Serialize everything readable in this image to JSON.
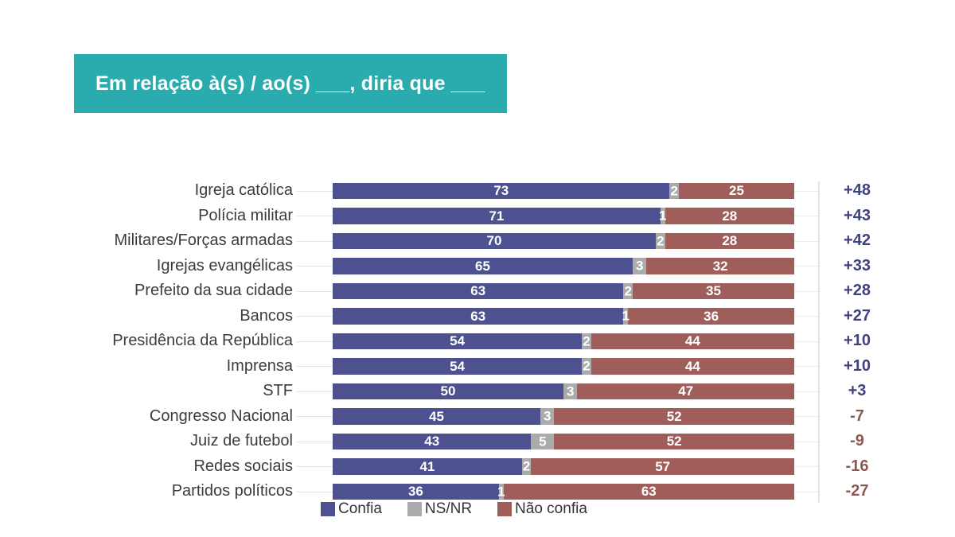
{
  "header": {
    "title": "Em relação à(s) / ao(s) ___, diria que ___"
  },
  "colors": {
    "header_bg": "#2AACAE",
    "header_text": "#FFFFFF",
    "confia": "#4D5190",
    "nsnr": "#ABABAB",
    "nao_confia": "#A05E5B",
    "net_positive": "#3F437B",
    "net_negative": "#8A5A52",
    "label_text": "#3C3C3C",
    "gridline": "#E3E3E3",
    "value_text": "#FFFFFF"
  },
  "chart_data": {
    "type": "bar",
    "orientation": "horizontal",
    "stacked": true,
    "title": "Em relação à(s) / ao(s) ___, diria que ___",
    "categories": [
      "Igreja católica",
      "Polícia militar",
      "Militares/Forças armadas",
      "Igrejas evangélicas",
      "Prefeito da sua cidade",
      "Bancos",
      "Presidência da República",
      "Imprensa",
      "STF",
      "Congresso Nacional",
      "Juiz de futebol",
      "Redes sociais",
      "Partidos políticos"
    ],
    "series": [
      {
        "name": "Confia",
        "color_key": "confia",
        "values": [
          73,
          71,
          70,
          65,
          63,
          63,
          54,
          54,
          50,
          45,
          43,
          41,
          36
        ]
      },
      {
        "name": "NS/NR",
        "color_key": "nsnr",
        "values": [
          2,
          1,
          2,
          3,
          2,
          1,
          2,
          2,
          3,
          3,
          5,
          2,
          1
        ]
      },
      {
        "name": "Não confia",
        "color_key": "nao_confia",
        "values": [
          25,
          28,
          28,
          32,
          35,
          36,
          44,
          44,
          47,
          52,
          52,
          57,
          63
        ]
      }
    ],
    "net_scores": [
      "+48",
      "+43",
      "+42",
      "+33",
      "+28",
      "+27",
      "+10",
      "+10",
      "+3",
      "-7",
      "-9",
      "-16",
      "-27"
    ],
    "xlim": [
      0,
      100
    ],
    "grid": false,
    "legend_position": "bottom",
    "legend": [
      "Confia",
      "NS/NR",
      "Não confia"
    ]
  }
}
